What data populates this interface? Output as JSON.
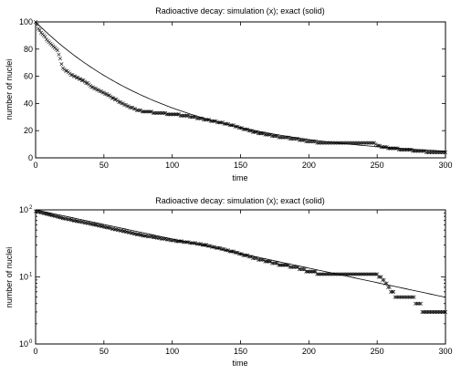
{
  "chart_data": [
    {
      "type": "scatter",
      "title": "Radioactive decay: simulation (x); exact (solid)",
      "xlabel": "time",
      "ylabel": "number of nuclei",
      "xlim": [
        0,
        300
      ],
      "ylim": [
        0,
        100
      ],
      "yscale": "linear",
      "grid": false,
      "xticks": [
        "0",
        "50",
        "100",
        "150",
        "200",
        "250",
        "300"
      ],
      "yticks": [
        "0",
        "20",
        "40",
        "60",
        "80",
        "100"
      ],
      "series": [
        {
          "style": "x-markers",
          "x": [
            0,
            2,
            4,
            6,
            8,
            10,
            13,
            16,
            20,
            25,
            30,
            35,
            40,
            45,
            50,
            55,
            60,
            65,
            70,
            75,
            80,
            90,
            100,
            110,
            120,
            130,
            140,
            150,
            160,
            170,
            180,
            190,
            200,
            210,
            220,
            230,
            240,
            248,
            250,
            255,
            260,
            270,
            280,
            290,
            300
          ],
          "y": [
            100,
            95,
            92,
            90,
            87,
            85,
            82,
            79,
            66,
            62,
            59,
            57,
            53,
            50,
            48,
            45,
            42,
            39,
            37,
            35,
            34,
            33,
            32,
            31,
            29,
            27,
            25,
            22,
            19,
            17,
            15,
            14,
            12,
            11,
            11,
            11,
            11,
            11,
            9,
            8,
            7,
            6,
            5,
            4,
            4
          ]
        },
        {
          "style": "solid",
          "function": "100*exp(-x/100)",
          "x": [
            0,
            300
          ]
        }
      ]
    },
    {
      "type": "scatter",
      "title": "Radioactive decay: simulation (x); exact (solid)",
      "xlabel": "time",
      "ylabel": "number of nuclei",
      "xlim": [
        0,
        300
      ],
      "ylim": [
        1,
        100
      ],
      "yscale": "log",
      "grid": false,
      "xticks": [
        "0",
        "50",
        "100",
        "150",
        "200",
        "250",
        "300"
      ],
      "yticks": [
        {
          "value": 1,
          "base": "10",
          "exp": "0"
        },
        {
          "value": 10,
          "base": "10",
          "exp": "1"
        },
        {
          "value": 100,
          "base": "10",
          "exp": "2"
        }
      ],
      "series": [
        {
          "style": "x-markers",
          "x": [
            0,
            5,
            10,
            20,
            30,
            40,
            50,
            60,
            70,
            80,
            90,
            100,
            110,
            120,
            130,
            140,
            150,
            160,
            170,
            180,
            190,
            200,
            210,
            220,
            230,
            240,
            248,
            252,
            256,
            260,
            265,
            270,
            275,
            280,
            285,
            290,
            300
          ],
          "y": [
            95,
            90,
            85,
            75,
            68,
            62,
            56,
            50,
            45,
            41,
            38,
            35,
            33,
            31,
            28,
            25,
            22,
            19,
            17,
            15,
            14,
            12,
            11,
            11,
            11,
            11,
            11,
            10,
            8,
            6,
            5,
            5,
            5,
            4,
            3,
            3,
            3
          ]
        },
        {
          "style": "solid",
          "function": "100*exp(-x/100)",
          "x": [
            0,
            300
          ]
        }
      ]
    }
  ]
}
